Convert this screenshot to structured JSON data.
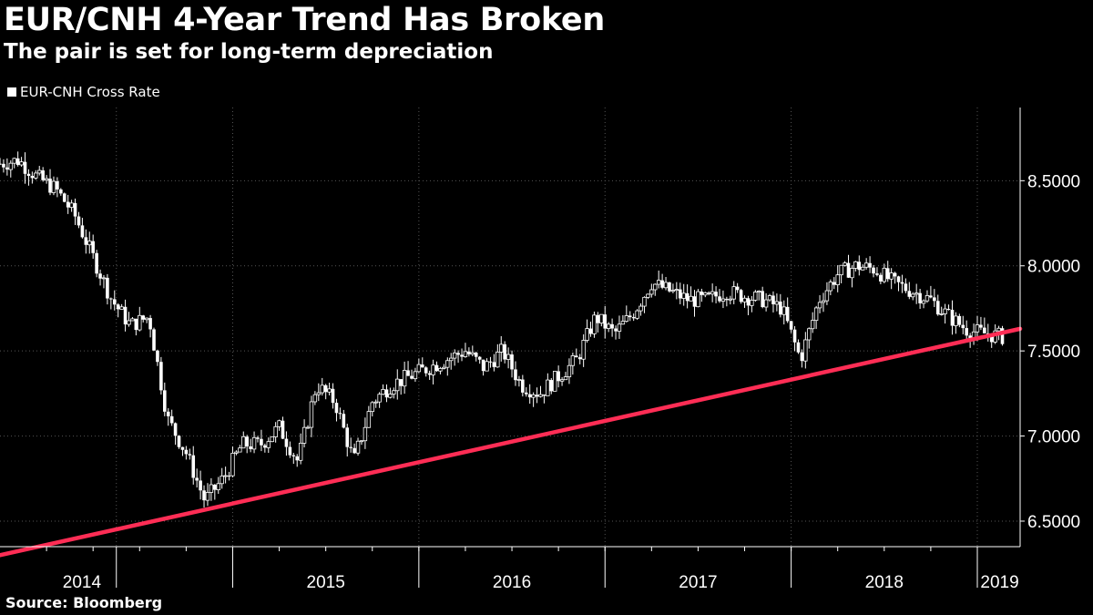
{
  "header": {
    "title": "EUR/CNH 4-Year Trend Has Broken",
    "subtitle": "The pair is set for long-term depreciation"
  },
  "footer": {
    "source": "Bloomberg",
    "source_prefix": "Source: "
  },
  "colors": {
    "background": "#000000",
    "series": "#ffffff",
    "trendline": "#ff2d55",
    "grid": "#555555"
  },
  "chart_data": {
    "type": "candlestick",
    "title": "EUR/CNH 4-Year Trend Has Broken",
    "subtitle": "The pair is set for long-term depreciation",
    "legend": [
      "EUR-CNH Cross Rate"
    ],
    "legend_position": "top-left",
    "y_axis_position": "right",
    "ylim": [
      6.35,
      8.93
    ],
    "yticks": [
      6.5,
      7.0,
      7.5,
      8.0,
      8.5
    ],
    "ytick_labels": [
      "6.5000",
      "7.0000",
      "7.5000",
      "8.0000",
      "8.5000"
    ],
    "xlim": [
      2013.75,
      2019.23
    ],
    "x_year_labels": [
      {
        "label": "2014",
        "center": 2014.19
      },
      {
        "label": "2015",
        "center": 2015.5
      },
      {
        "label": "2016",
        "center": 2016.5
      },
      {
        "label": "2017",
        "center": 2017.5
      },
      {
        "label": "2018",
        "center": 2018.5
      },
      {
        "label": "2019",
        "center": 2019.12
      }
    ],
    "x_year_boundaries": [
      2014.375,
      2015.0,
      2016.0,
      2017.0,
      2018.0,
      2019.0
    ],
    "grid": true,
    "series": [
      {
        "name": "EUR-CNH Cross Rate",
        "x": [
          2013.75,
          2013.85,
          2013.95,
          2014.05,
          2014.15,
          2014.25,
          2014.35,
          2014.45,
          2014.55,
          2014.65,
          2014.75,
          2014.85,
          2014.95,
          2015.05,
          2015.15,
          2015.25,
          2015.35,
          2015.45,
          2015.55,
          2015.65,
          2015.75,
          2015.85,
          2015.95,
          2016.05,
          2016.15,
          2016.25,
          2016.35,
          2016.45,
          2016.55,
          2016.65,
          2016.75,
          2016.85,
          2016.95,
          2017.05,
          2017.15,
          2017.25,
          2017.35,
          2017.45,
          2017.55,
          2017.65,
          2017.75,
          2017.85,
          2017.95,
          2018.05,
          2018.15,
          2018.25,
          2018.35,
          2018.45,
          2018.55,
          2018.65,
          2018.75,
          2018.85,
          2018.95,
          2019.05,
          2019.15
        ],
        "close": [
          8.6,
          8.62,
          8.52,
          8.45,
          8.3,
          8.05,
          7.8,
          7.65,
          7.7,
          7.1,
          6.9,
          6.62,
          6.75,
          6.95,
          6.95,
          7.05,
          6.85,
          7.3,
          7.2,
          6.85,
          7.2,
          7.3,
          7.35,
          7.4,
          7.45,
          7.5,
          7.4,
          7.5,
          7.3,
          7.25,
          7.35,
          7.45,
          7.7,
          7.6,
          7.72,
          7.9,
          7.85,
          7.8,
          7.8,
          7.85,
          7.82,
          7.8,
          7.75,
          7.45,
          7.8,
          7.95,
          8.0,
          7.98,
          7.9,
          7.85,
          7.8,
          7.7,
          7.62,
          7.6,
          7.58
        ]
      }
    ],
    "trendline": {
      "x": [
        2013.75,
        2019.23
      ],
      "y": [
        6.3,
        7.63
      ],
      "color": "#ff2d55"
    }
  }
}
